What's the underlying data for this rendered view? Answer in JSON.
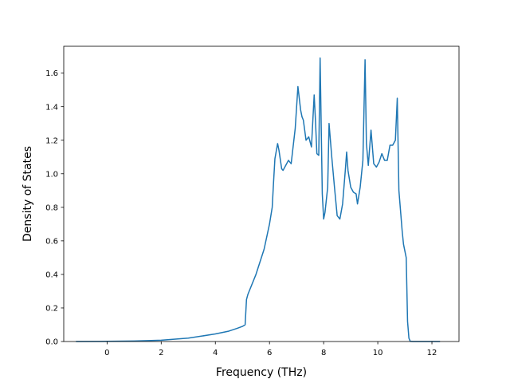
{
  "chart_data": {
    "type": "line",
    "title": "",
    "xlabel": "Frequency (THz)",
    "ylabel": "Density of States",
    "xlim": [
      -1.6,
      13.0
    ],
    "ylim": [
      0.0,
      1.76
    ],
    "xticks": [
      0,
      2,
      4,
      6,
      8,
      10,
      12
    ],
    "xtick_labels": [
      "0",
      "2",
      "4",
      "6",
      "8",
      "10",
      "12"
    ],
    "yticks": [
      0.0,
      0.2,
      0.4,
      0.6,
      0.8,
      1.0,
      1.2,
      1.4,
      1.6
    ],
    "ytick_labels": [
      "0.0",
      "0.2",
      "0.4",
      "0.6",
      "0.8",
      "1.0",
      "1.2",
      "1.4",
      "1.6"
    ],
    "grid": false,
    "legend": "none",
    "series": [
      {
        "color": "#1f77b4",
        "x": [
          -1.15,
          0.0,
          1.0,
          2.0,
          3.0,
          4.0,
          4.5,
          4.8,
          5.0,
          5.1,
          5.15,
          5.2,
          5.5,
          5.8,
          6.0,
          6.1,
          6.15,
          6.2,
          6.3,
          6.35,
          6.45,
          6.5,
          6.6,
          6.7,
          6.8,
          6.85,
          6.95,
          7.05,
          7.1,
          7.15,
          7.2,
          7.25,
          7.35,
          7.45,
          7.55,
          7.65,
          7.7,
          7.75,
          7.82,
          7.87,
          7.95,
          8.0,
          8.05,
          8.15,
          8.2,
          8.3,
          8.4,
          8.5,
          8.6,
          8.7,
          8.8,
          8.85,
          8.9,
          9.0,
          9.1,
          9.2,
          9.25,
          9.35,
          9.45,
          9.53,
          9.58,
          9.65,
          9.75,
          9.85,
          9.95,
          10.05,
          10.15,
          10.25,
          10.35,
          10.45,
          10.55,
          10.65,
          10.72,
          10.78,
          10.85,
          10.9,
          10.95,
          11.05,
          11.1,
          11.15,
          11.2,
          11.3,
          11.5,
          12.3
        ],
        "y": [
          0.0,
          0.001,
          0.003,
          0.008,
          0.02,
          0.045,
          0.062,
          0.078,
          0.09,
          0.1,
          0.25,
          0.28,
          0.4,
          0.55,
          0.7,
          0.8,
          0.95,
          1.09,
          1.18,
          1.14,
          1.03,
          1.02,
          1.05,
          1.08,
          1.06,
          1.13,
          1.27,
          1.52,
          1.45,
          1.38,
          1.34,
          1.32,
          1.2,
          1.22,
          1.16,
          1.47,
          1.31,
          1.12,
          1.11,
          1.69,
          0.88,
          0.73,
          0.77,
          0.92,
          1.3,
          1.1,
          0.92,
          0.75,
          0.73,
          0.82,
          1.02,
          1.13,
          1.02,
          0.92,
          0.89,
          0.88,
          0.82,
          0.92,
          1.08,
          1.68,
          1.18,
          1.05,
          1.26,
          1.06,
          1.04,
          1.07,
          1.12,
          1.08,
          1.08,
          1.17,
          1.17,
          1.2,
          1.45,
          0.9,
          0.76,
          0.66,
          0.58,
          0.5,
          0.12,
          0.02,
          0.001,
          0.0,
          0.0,
          0.0
        ]
      }
    ]
  }
}
